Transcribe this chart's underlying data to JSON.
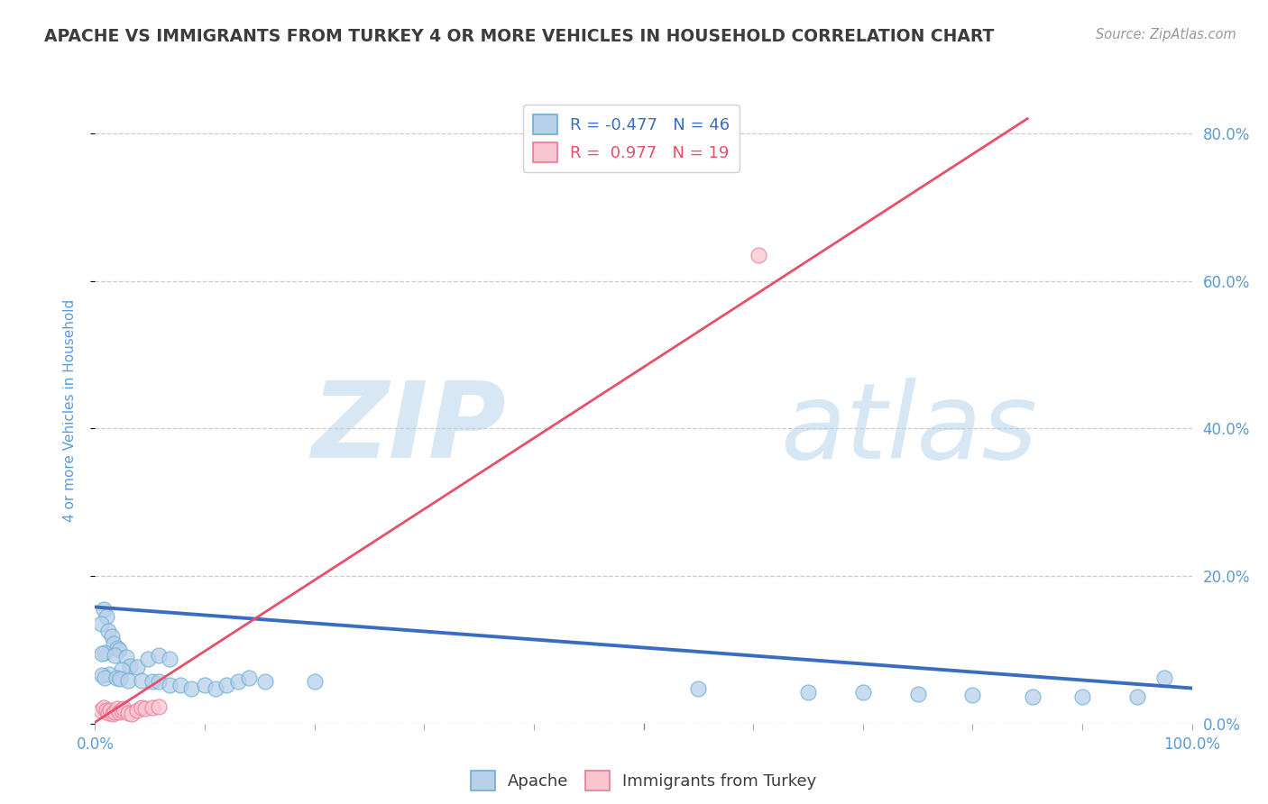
{
  "title": "APACHE VS IMMIGRANTS FROM TURKEY 4 OR MORE VEHICLES IN HOUSEHOLD CORRELATION CHART",
  "source": "Source: ZipAtlas.com",
  "ylabel": "4 or more Vehicles in Household",
  "watermark_zip": "ZIP",
  "watermark_atlas": "atlas",
  "legend_apache": "Apache",
  "legend_turkey": "Immigrants from Turkey",
  "apache_R": -0.477,
  "apache_N": 46,
  "turkey_R": 0.977,
  "turkey_N": 19,
  "apache_color": "#b8d0ea",
  "apache_edge_color": "#6baed6",
  "apache_line_color": "#3a6dbf",
  "turkey_color": "#f9c6d0",
  "turkey_edge_color": "#e87a9a",
  "turkey_line_color": "#e8506a",
  "xlim": [
    0.0,
    1.0
  ],
  "ylim": [
    0.0,
    0.85
  ],
  "bg_color": "#ffffff",
  "grid_color": "#c8c8c8",
  "title_color": "#3c3c3c",
  "axis_label_color": "#5b9bd5",
  "yticks": [
    0.0,
    0.2,
    0.4,
    0.6,
    0.8
  ],
  "apache_scatter_x": [
    0.008,
    0.01,
    0.005,
    0.012,
    0.015,
    0.017,
    0.02,
    0.022,
    0.009,
    0.006,
    0.018,
    0.028,
    0.032,
    0.038,
    0.024,
    0.013,
    0.006,
    0.009,
    0.019,
    0.023,
    0.03,
    0.042,
    0.052,
    0.058,
    0.068,
    0.078,
    0.088,
    0.1,
    0.11,
    0.12,
    0.048,
    0.058,
    0.068,
    0.13,
    0.14,
    0.155,
    0.2,
    0.55,
    0.65,
    0.7,
    0.75,
    0.8,
    0.855,
    0.9,
    0.95,
    0.975
  ],
  "apache_scatter_y": [
    0.155,
    0.145,
    0.135,
    0.125,
    0.118,
    0.108,
    0.102,
    0.1,
    0.096,
    0.095,
    0.092,
    0.09,
    0.078,
    0.077,
    0.073,
    0.067,
    0.066,
    0.062,
    0.062,
    0.061,
    0.058,
    0.058,
    0.057,
    0.057,
    0.052,
    0.052,
    0.047,
    0.052,
    0.048,
    0.052,
    0.088,
    0.092,
    0.088,
    0.057,
    0.062,
    0.057,
    0.057,
    0.047,
    0.042,
    0.042,
    0.04,
    0.039,
    0.037,
    0.037,
    0.036,
    0.062
  ],
  "turkey_scatter_x": [
    0.005,
    0.008,
    0.01,
    0.012,
    0.014,
    0.016,
    0.018,
    0.02,
    0.022,
    0.024,
    0.026,
    0.03,
    0.033,
    0.038,
    0.042,
    0.046,
    0.052,
    0.058,
    0.605
  ],
  "turkey_scatter_y": [
    0.018,
    0.022,
    0.018,
    0.014,
    0.018,
    0.013,
    0.016,
    0.02,
    0.016,
    0.018,
    0.02,
    0.015,
    0.013,
    0.018,
    0.022,
    0.02,
    0.022,
    0.023,
    0.635
  ],
  "apache_trend_x": [
    0.0,
    1.0
  ],
  "apache_trend_y": [
    0.158,
    0.048
  ],
  "turkey_trend_x": [
    0.0,
    0.85
  ],
  "turkey_trend_y": [
    0.002,
    0.82
  ]
}
